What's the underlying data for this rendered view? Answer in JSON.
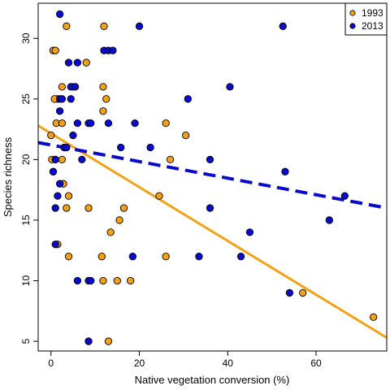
{
  "chart_data": {
    "type": "scatter",
    "title": "",
    "xlabel": "Native vegetation conversion (%)",
    "ylabel": "Species richness",
    "xlim": [
      -2.9,
      76
    ],
    "ylim": [
      4.2,
      32.9
    ],
    "xticks": [
      0,
      20,
      40,
      60
    ],
    "yticks": [
      5,
      10,
      15,
      20,
      25,
      30
    ],
    "grid": false,
    "legend": {
      "placement": "top-right",
      "entries": [
        "1993",
        "2013"
      ]
    },
    "series": [
      {
        "name": "1993",
        "color": "#f4a114",
        "marker": "circle",
        "points": [
          [
            0.5,
            29
          ],
          [
            1.0,
            29
          ],
          [
            3.5,
            31
          ],
          [
            12.0,
            31
          ],
          [
            1.5,
            25
          ],
          [
            0.8,
            25
          ],
          [
            2.5,
            26
          ],
          [
            5.0,
            26
          ],
          [
            8.0,
            28
          ],
          [
            11.8,
            26
          ],
          [
            11.8,
            24
          ],
          [
            12.5,
            25
          ],
          [
            1.2,
            23
          ],
          [
            2.5,
            23
          ],
          [
            0.0,
            22
          ],
          [
            0.2,
            20
          ],
          [
            1.0,
            20
          ],
          [
            2.5,
            20
          ],
          [
            3.0,
            21
          ],
          [
            3.5,
            21
          ],
          [
            2.8,
            18
          ],
          [
            3.5,
            16
          ],
          [
            4.0,
            17
          ],
          [
            8.5,
            16
          ],
          [
            0.5,
            19
          ],
          [
            1.5,
            13
          ],
          [
            4.0,
            12
          ],
          [
            11.5,
            12
          ],
          [
            11.8,
            10
          ],
          [
            15.0,
            10
          ],
          [
            15.5,
            15
          ],
          [
            16.5,
            16
          ],
          [
            13.5,
            14
          ],
          [
            24.5,
            17
          ],
          [
            26.0,
            23
          ],
          [
            27.0,
            20
          ],
          [
            30.5,
            22
          ],
          [
            26.0,
            12
          ],
          [
            18.0,
            10
          ],
          [
            13.0,
            5
          ],
          [
            57.0,
            9
          ],
          [
            73.0,
            7
          ]
        ]
      },
      {
        "name": "2013",
        "color": "#0a0acc",
        "marker": "circle",
        "points": [
          [
            1.0,
            20
          ],
          [
            2.0,
            18
          ],
          [
            1.5,
            17
          ],
          [
            1.0,
            16
          ],
          [
            0.5,
            19
          ],
          [
            1.0,
            13
          ],
          [
            2.0,
            24
          ],
          [
            2.0,
            25
          ],
          [
            2.5,
            25
          ],
          [
            3.0,
            21
          ],
          [
            3.5,
            21
          ],
          [
            4.0,
            28
          ],
          [
            4.5,
            26
          ],
          [
            5.5,
            26
          ],
          [
            4.5,
            25
          ],
          [
            5.0,
            22
          ],
          [
            6.0,
            23
          ],
          [
            6.0,
            28
          ],
          [
            7.0,
            20
          ],
          [
            8.5,
            23
          ],
          [
            9.0,
            23
          ],
          [
            12.0,
            29
          ],
          [
            13.0,
            23
          ],
          [
            13.0,
            29
          ],
          [
            14.0,
            29
          ],
          [
            15.8,
            21
          ],
          [
            19.0,
            23
          ],
          [
            22.5,
            21
          ],
          [
            2.0,
            32
          ],
          [
            20.0,
            31
          ],
          [
            31.0,
            25
          ],
          [
            36.0,
            20
          ],
          [
            36.0,
            16
          ],
          [
            40.5,
            26
          ],
          [
            45.0,
            14
          ],
          [
            43.0,
            12
          ],
          [
            33.5,
            12
          ],
          [
            18.5,
            12
          ],
          [
            6.0,
            10
          ],
          [
            8.5,
            10
          ],
          [
            9.0,
            10
          ],
          [
            8.5,
            5
          ],
          [
            52.5,
            31
          ],
          [
            53.0,
            19
          ],
          [
            54.0,
            9
          ],
          [
            63.0,
            15
          ],
          [
            66.5,
            17
          ]
        ]
      }
    ],
    "trendlines": [
      {
        "series": "1993",
        "color": "#f4a114",
        "style": "solid",
        "x": [
          -2.9,
          76
        ],
        "y": [
          22.8,
          5.3
        ]
      },
      {
        "series": "2013",
        "color": "#0a0acc",
        "style": "dashed",
        "x": [
          -2.9,
          76
        ],
        "y": [
          21.4,
          16.0
        ]
      }
    ]
  }
}
